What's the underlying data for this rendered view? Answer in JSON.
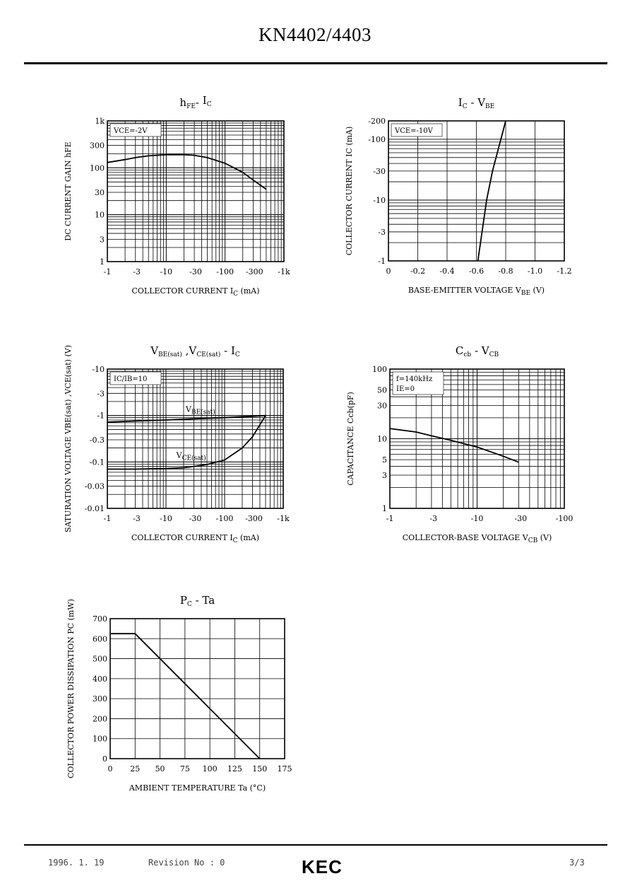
{
  "page": {
    "title": "KN4402/4403",
    "footer": {
      "date": "1996. 1. 19",
      "revision": "Revision No : 0",
      "logo": "KEC",
      "page": "3/3"
    }
  },
  "chart_data": [
    {
      "id": "hfe-ic",
      "type": "line",
      "title": "hFE - IC",
      "xlabel": "COLLECTOR CURRENT IC (mA)",
      "ylabel": "DC CURRENT GAIN hFE",
      "xscale": "log",
      "yscale": "log",
      "xlim": [
        1,
        1000
      ],
      "ylim": [
        1,
        1000
      ],
      "x_ticks": [
        "-1",
        "-3",
        "-10",
        "-30",
        "-100",
        "-300",
        "-1k"
      ],
      "y_ticks": [
        "1",
        "3",
        "10",
        "30",
        "100",
        "300",
        "1k"
      ],
      "annotations": [
        "VCE=-2V"
      ],
      "series": [
        {
          "x": [
            1,
            2,
            3,
            5,
            10,
            20,
            30,
            50,
            100,
            200,
            300,
            500
          ],
          "y": [
            130,
            150,
            165,
            180,
            190,
            190,
            185,
            165,
            125,
            80,
            55,
            35
          ]
        }
      ]
    },
    {
      "id": "ic-vbe",
      "type": "line",
      "title": "IC - VBE",
      "xlabel": "BASE-EMITTER VOLTAGE VBE (V)",
      "ylabel": "COLLECTOR CURRENT IC (mA)",
      "xscale": "linear",
      "yscale": "log",
      "xlim": [
        0,
        -1.2
      ],
      "ylim": [
        1,
        200
      ],
      "x_ticks": [
        "0",
        "-0.2",
        "-0.4",
        "-0.6",
        "-0.8",
        "-1.0",
        "-1.2"
      ],
      "y_ticks": [
        "-1",
        "-3",
        "-10",
        "-30",
        "-100",
        "-200"
      ],
      "annotations": [
        "VCE=-10V"
      ],
      "series": [
        {
          "x": [
            -0.61,
            -0.67,
            -0.71,
            -0.8
          ],
          "y": [
            1,
            10,
            30,
            200
          ]
        }
      ]
    },
    {
      "id": "vsat-ic",
      "type": "line",
      "title": "VBE(sat) ,VCE(sat) - IC",
      "xlabel": "COLLECTOR CURRENT IC (mA)",
      "ylabel": "SATURATION VOLTAGE VBE(sat) ,VCE(sat) (V)",
      "xscale": "log",
      "yscale": "log",
      "xlim": [
        1,
        1000
      ],
      "ylim": [
        0.01,
        10
      ],
      "x_ticks": [
        "-1",
        "-3",
        "-10",
        "-30",
        "-100",
        "-300",
        "-1k"
      ],
      "y_ticks": [
        "-0.01",
        "-0.03",
        "-0.1",
        "-0.3",
        "-1",
        "-3",
        "-10"
      ],
      "annotations": [
        "IC/IB=10"
      ],
      "series": [
        {
          "name": "VBE(sat)",
          "x": [
            1,
            3,
            10,
            30,
            100,
            300,
            500
          ],
          "y": [
            0.72,
            0.76,
            0.8,
            0.85,
            0.9,
            0.96,
            1.0
          ]
        },
        {
          "name": "VCE(sat)",
          "x": [
            1,
            3,
            10,
            20,
            30,
            50,
            100,
            200,
            300,
            500
          ],
          "y": [
            0.07,
            0.07,
            0.072,
            0.075,
            0.08,
            0.088,
            0.11,
            0.2,
            0.35,
            1.0
          ]
        }
      ]
    },
    {
      "id": "ccb-vcb",
      "type": "line",
      "title": "Ccb - VCB",
      "xlabel": "COLLECTOR-BASE VOLTAGE VCB (V)",
      "ylabel": "CAPACITANCE Ccb(pF)",
      "xscale": "log",
      "yscale": "log",
      "xlim": [
        1,
        100
      ],
      "ylim": [
        1,
        100
      ],
      "x_ticks": [
        "-1",
        "-3",
        "-10",
        "-30",
        "-100"
      ],
      "y_ticks": [
        "1",
        "3",
        "5",
        "10",
        "30",
        "50",
        "100"
      ],
      "annotations": [
        "f=140kHz",
        "IE=0"
      ],
      "series": [
        {
          "x": [
            1,
            2,
            3,
            5,
            10,
            20,
            30
          ],
          "y": [
            14,
            12.5,
            11,
            9.5,
            7.6,
            5.6,
            4.6
          ]
        }
      ]
    },
    {
      "id": "pc-ta",
      "type": "line",
      "title": "PC - Ta",
      "xlabel": "AMBIENT TEMPERATURE Ta (°C)",
      "ylabel": "COLLECTOR POWER DISSIPATION PC (mW)",
      "xscale": "linear",
      "yscale": "linear",
      "xlim": [
        0,
        175
      ],
      "ylim": [
        0,
        700
      ],
      "x_ticks": [
        "0",
        "25",
        "50",
        "75",
        "100",
        "125",
        "150",
        "175"
      ],
      "y_ticks": [
        "0",
        "100",
        "200",
        "300",
        "400",
        "500",
        "600",
        "700"
      ],
      "series": [
        {
          "x": [
            0,
            25,
            150
          ],
          "y": [
            625,
            625,
            0
          ]
        }
      ]
    }
  ]
}
